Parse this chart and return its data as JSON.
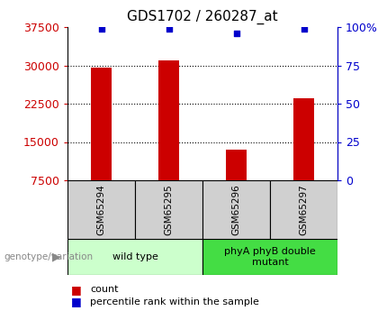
{
  "title": "GDS1702 / 260287_at",
  "samples": [
    "GSM65294",
    "GSM65295",
    "GSM65296",
    "GSM65297"
  ],
  "counts": [
    29500,
    31000,
    13500,
    23500
  ],
  "percentile_ranks": [
    99,
    99,
    96,
    99
  ],
  "ylim_left": [
    7500,
    37500
  ],
  "yticks_left": [
    7500,
    15000,
    22500,
    30000,
    37500
  ],
  "ylim_right": [
    0,
    100
  ],
  "yticks_right": [
    0,
    25,
    50,
    75,
    100
  ],
  "bar_color": "#cc0000",
  "dot_color": "#0000cc",
  "groups": [
    {
      "label": "wild type",
      "indices": [
        0,
        1
      ],
      "color": "#ccffcc"
    },
    {
      "label": "phyA phyB double\nmutant",
      "indices": [
        2,
        3
      ],
      "color": "#44dd44"
    }
  ],
  "xlabel_left": "genotype/variation",
  "background_color": "#ffffff",
  "plot_bg": "#ffffff",
  "title_fontsize": 11,
  "tick_fontsize": 9,
  "sample_box_color": "#d0d0d0"
}
